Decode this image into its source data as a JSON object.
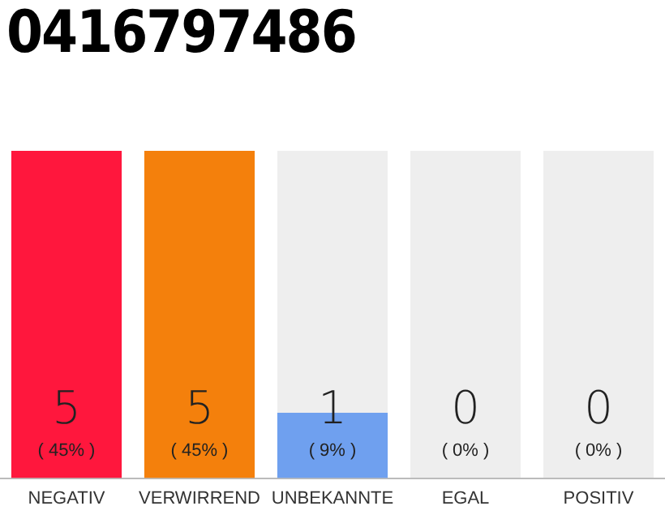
{
  "chart_data": {
    "type": "bar",
    "title": "0416797486",
    "categories": [
      "NEGATIV",
      "VERWIRREND",
      "UNBEKANNTE",
      "EGAL",
      "POSITIV"
    ],
    "values": [
      5,
      5,
      1,
      0,
      0
    ],
    "colors": [
      "#ff173d",
      "#f4800c",
      "#6fa0ef",
      "#6fa0ef",
      "#6fa0ef"
    ],
    "data_labels": true,
    "annotations": [
      {
        "text": "( 45% )",
        "x": "NEGATIV",
        "y": 0
      },
      {
        "text": "( 45% )",
        "x": "VERWIRREND",
        "y": 0
      },
      {
        "text": "( 9% )",
        "x": "UNBEKANNTE",
        "y": 0
      },
      {
        "text": "( 0% )",
        "x": "EGAL",
        "y": 0
      },
      {
        "text": "( 0% )",
        "x": "POSITIV",
        "y": 0
      }
    ],
    "grid": false,
    "legend": false
  }
}
